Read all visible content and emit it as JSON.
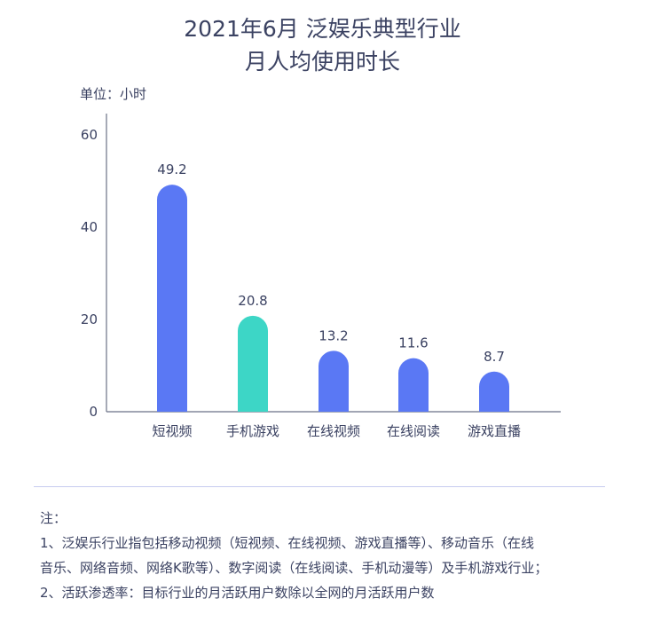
{
  "title_line1": "2021年6月 泛娱乐典型行业",
  "title_line2": "月人均使用时长",
  "unit_label": "单位：小时",
  "colors": {
    "primary": "#5a78f4",
    "highlight": "#3dd6c6",
    "axis": "#6b7286",
    "text": "#3b4262"
  },
  "chart_data": {
    "type": "bar",
    "categories": [
      "短视频",
      "手机游戏",
      "在线视频",
      "在线阅读",
      "游戏直播"
    ],
    "values": [
      49.2,
      20.8,
      13.2,
      11.6,
      8.7
    ],
    "value_labels": [
      "49.2",
      "20.8",
      "13.2",
      "11.6",
      "8.7"
    ],
    "highlight_index": 1,
    "ylim": [
      0,
      60
    ],
    "yticks": [
      0,
      20,
      40,
      60
    ],
    "ytick_labels": [
      "0",
      "20",
      "40",
      "60"
    ],
    "ylabel": "单位：小时",
    "xlabel": "",
    "grid": false
  },
  "notes": {
    "heading": "注：",
    "line1": "1、泛娱乐行业指包括移动视频（短视频、在线视频、游戏直播等）、移动音乐（在线",
    "line2": "音乐、网络音频、网络K歌等）、数字阅读（在线阅读、手机动漫等）及手机游戏行业；",
    "line3": "2、活跃渗透率：目标行业的月活跃用户数除以全网的月活跃用户数"
  }
}
